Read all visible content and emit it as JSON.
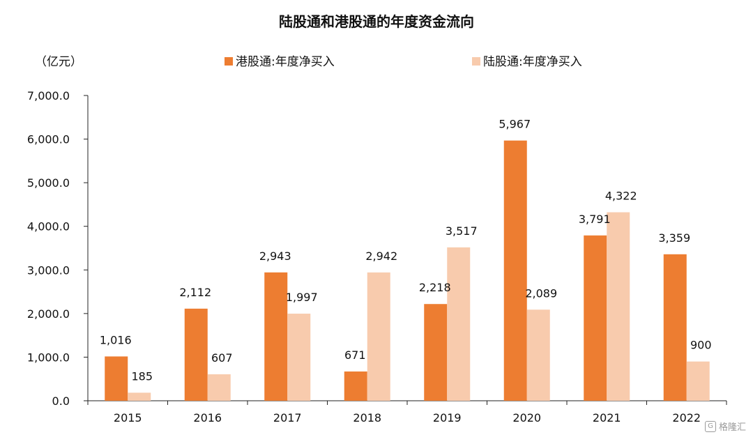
{
  "chart_data": {
    "type": "bar",
    "title": "陆股通和港股通的年度资金流向",
    "unit_label": "（亿元）",
    "categories": [
      "2015",
      "2016",
      "2017",
      "2018",
      "2019",
      "2020",
      "2021",
      "2022"
    ],
    "series": [
      {
        "name": "港股通:年度净买入",
        "color": "#ED7D31",
        "values": [
          1016,
          2112,
          2943,
          671,
          2218,
          5967,
          3791,
          3359
        ],
        "labels": [
          "1,016",
          "2,112",
          "2,943",
          "671",
          "2,218",
          "5,967",
          "3,791",
          "3,359"
        ]
      },
      {
        "name": "陆股通:年度净买入",
        "color": "#F8CBAD",
        "values": [
          185,
          607,
          1997,
          2942,
          3517,
          2089,
          4322,
          900
        ],
        "labels": [
          "185",
          "607",
          "1,997",
          "2,942",
          "3,517",
          "2,089",
          "4,322",
          "900"
        ]
      }
    ],
    "y_ticks": [
      "0.0",
      "1,000.0",
      "2,000.0",
      "3,000.0",
      "4,000.0",
      "5,000.0",
      "6,000.0",
      "7,000.0"
    ],
    "ylim": [
      0,
      7000
    ],
    "grid": false,
    "legend_position": "top"
  },
  "watermark": {
    "icon": "G",
    "text": "格隆汇"
  }
}
